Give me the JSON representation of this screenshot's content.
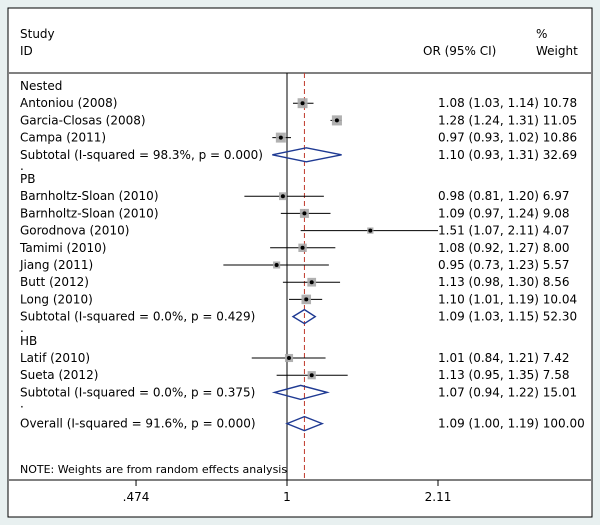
{
  "chart_data": {
    "type": "forest",
    "header": {
      "study": "Study",
      "id": "ID",
      "or_ci": "OR (95% CI)",
      "pct": "%",
      "weight": "Weight"
    },
    "axis": {
      "ticks": [
        0.474,
        1,
        2.11
      ],
      "tick_labels": [
        ".474",
        "1",
        "2.11"
      ],
      "reference_line": 1,
      "overall_line": 1.09
    },
    "groups": [
      {
        "name": "Nested",
        "studies": [
          {
            "name": "Antoniou (2008)",
            "or": 1.08,
            "lo": 1.03,
            "hi": 1.14,
            "weight": 10.78,
            "text": "1.08 (1.03, 1.14) 10.78"
          },
          {
            "name": "Garcia-Closas (2008)",
            "or": 1.28,
            "lo": 1.24,
            "hi": 1.31,
            "weight": 11.05,
            "text": "1.28 (1.24, 1.31) 11.05"
          },
          {
            "name": "Campa (2011)",
            "or": 0.97,
            "lo": 0.93,
            "hi": 1.02,
            "weight": 10.86,
            "text": "0.97 (0.93, 1.02) 10.86"
          }
        ],
        "subtotal": {
          "label": "Subtotal  (I-squared = 98.3%, p = 0.000)",
          "or": 1.1,
          "lo": 0.93,
          "hi": 1.31,
          "text": "1.10 (0.93, 1.31) 32.69"
        }
      },
      {
        "name": "PB",
        "studies": [
          {
            "name": "Barnholtz-Sloan (2010)",
            "or": 0.98,
            "lo": 0.81,
            "hi": 1.2,
            "weight": 6.97,
            "text": "0.98 (0.81, 1.20) 6.97"
          },
          {
            "name": "Barnholtz-Sloan (2010)",
            "or": 1.09,
            "lo": 0.97,
            "hi": 1.24,
            "weight": 9.08,
            "text": "1.09 (0.97, 1.24) 9.08"
          },
          {
            "name": "Gorodnova (2010)",
            "or": 1.51,
            "lo": 1.07,
            "hi": 2.11,
            "weight": 4.07,
            "text": "1.51 (1.07, 2.11) 4.07"
          },
          {
            "name": "Tamimi (2010)",
            "or": 1.08,
            "lo": 0.92,
            "hi": 1.27,
            "weight": 8.0,
            "text": "1.08 (0.92, 1.27) 8.00"
          },
          {
            "name": "Jiang (2011)",
            "or": 0.95,
            "lo": 0.73,
            "hi": 1.23,
            "weight": 5.57,
            "text": "0.95 (0.73, 1.23) 5.57"
          },
          {
            "name": "Butt (2012)",
            "or": 1.13,
            "lo": 0.98,
            "hi": 1.3,
            "weight": 8.56,
            "text": "1.13 (0.98, 1.30) 8.56"
          },
          {
            "name": "Long (2010)",
            "or": 1.1,
            "lo": 1.01,
            "hi": 1.19,
            "weight": 10.04,
            "text": "1.10 (1.01, 1.19) 10.04"
          }
        ],
        "subtotal": {
          "label": "Subtotal  (I-squared = 0.0%, p = 0.429)",
          "or": 1.09,
          "lo": 1.03,
          "hi": 1.15,
          "text": "1.09 (1.03, 1.15) 52.30"
        }
      },
      {
        "name": "HB",
        "studies": [
          {
            "name": "Latif (2010)",
            "or": 1.01,
            "lo": 0.84,
            "hi": 1.21,
            "weight": 7.42,
            "text": "1.01 (0.84, 1.21) 7.42"
          },
          {
            "name": "Sueta (2012)",
            "or": 1.13,
            "lo": 0.95,
            "hi": 1.35,
            "weight": 7.58,
            "text": "1.13 (0.95, 1.35) 7.58"
          }
        ],
        "subtotal": {
          "label": "Subtotal  (I-squared = 0.0%, p = 0.375)",
          "or": 1.07,
          "lo": 0.94,
          "hi": 1.22,
          "text": "1.07 (0.94, 1.22) 15.01"
        }
      }
    ],
    "overall": {
      "label": "Overall  (I-squared = 91.6%, p = 0.000)",
      "or": 1.09,
      "lo": 1.0,
      "hi": 1.19,
      "text": "1.09 (1.00, 1.19) 100.00"
    },
    "separator": ".",
    "note": "NOTE: Weights are from random effects analysis"
  }
}
